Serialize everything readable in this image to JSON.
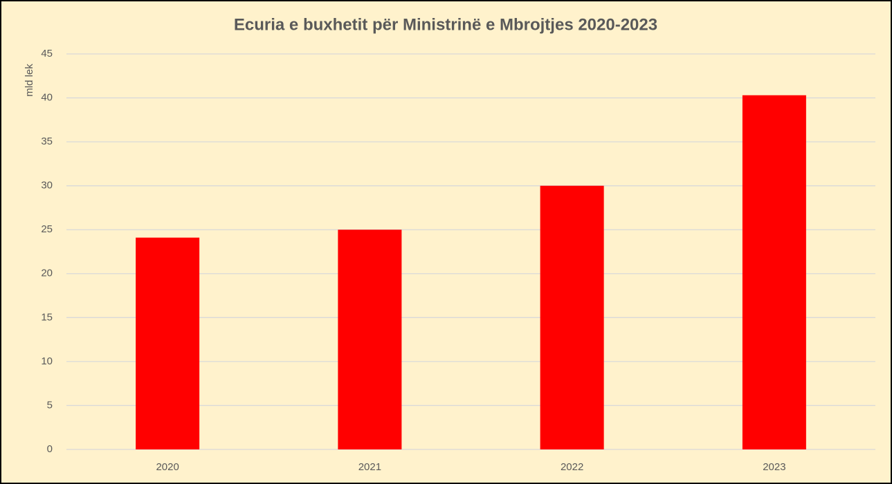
{
  "chart_data": {
    "type": "bar",
    "title": "Ecuria e buxhetit për Ministrinë e Mbrojtjes 2020-2023",
    "y_label": "mld lek",
    "categories": [
      "2020",
      "2021",
      "2022",
      "2023"
    ],
    "values": [
      24.1,
      25,
      30,
      40.3
    ],
    "color": "#ff0000",
    "ylim": [
      0,
      45
    ],
    "yticks": [
      0,
      5,
      10,
      15,
      20,
      25,
      30,
      35,
      40,
      45
    ],
    "grid": true
  }
}
